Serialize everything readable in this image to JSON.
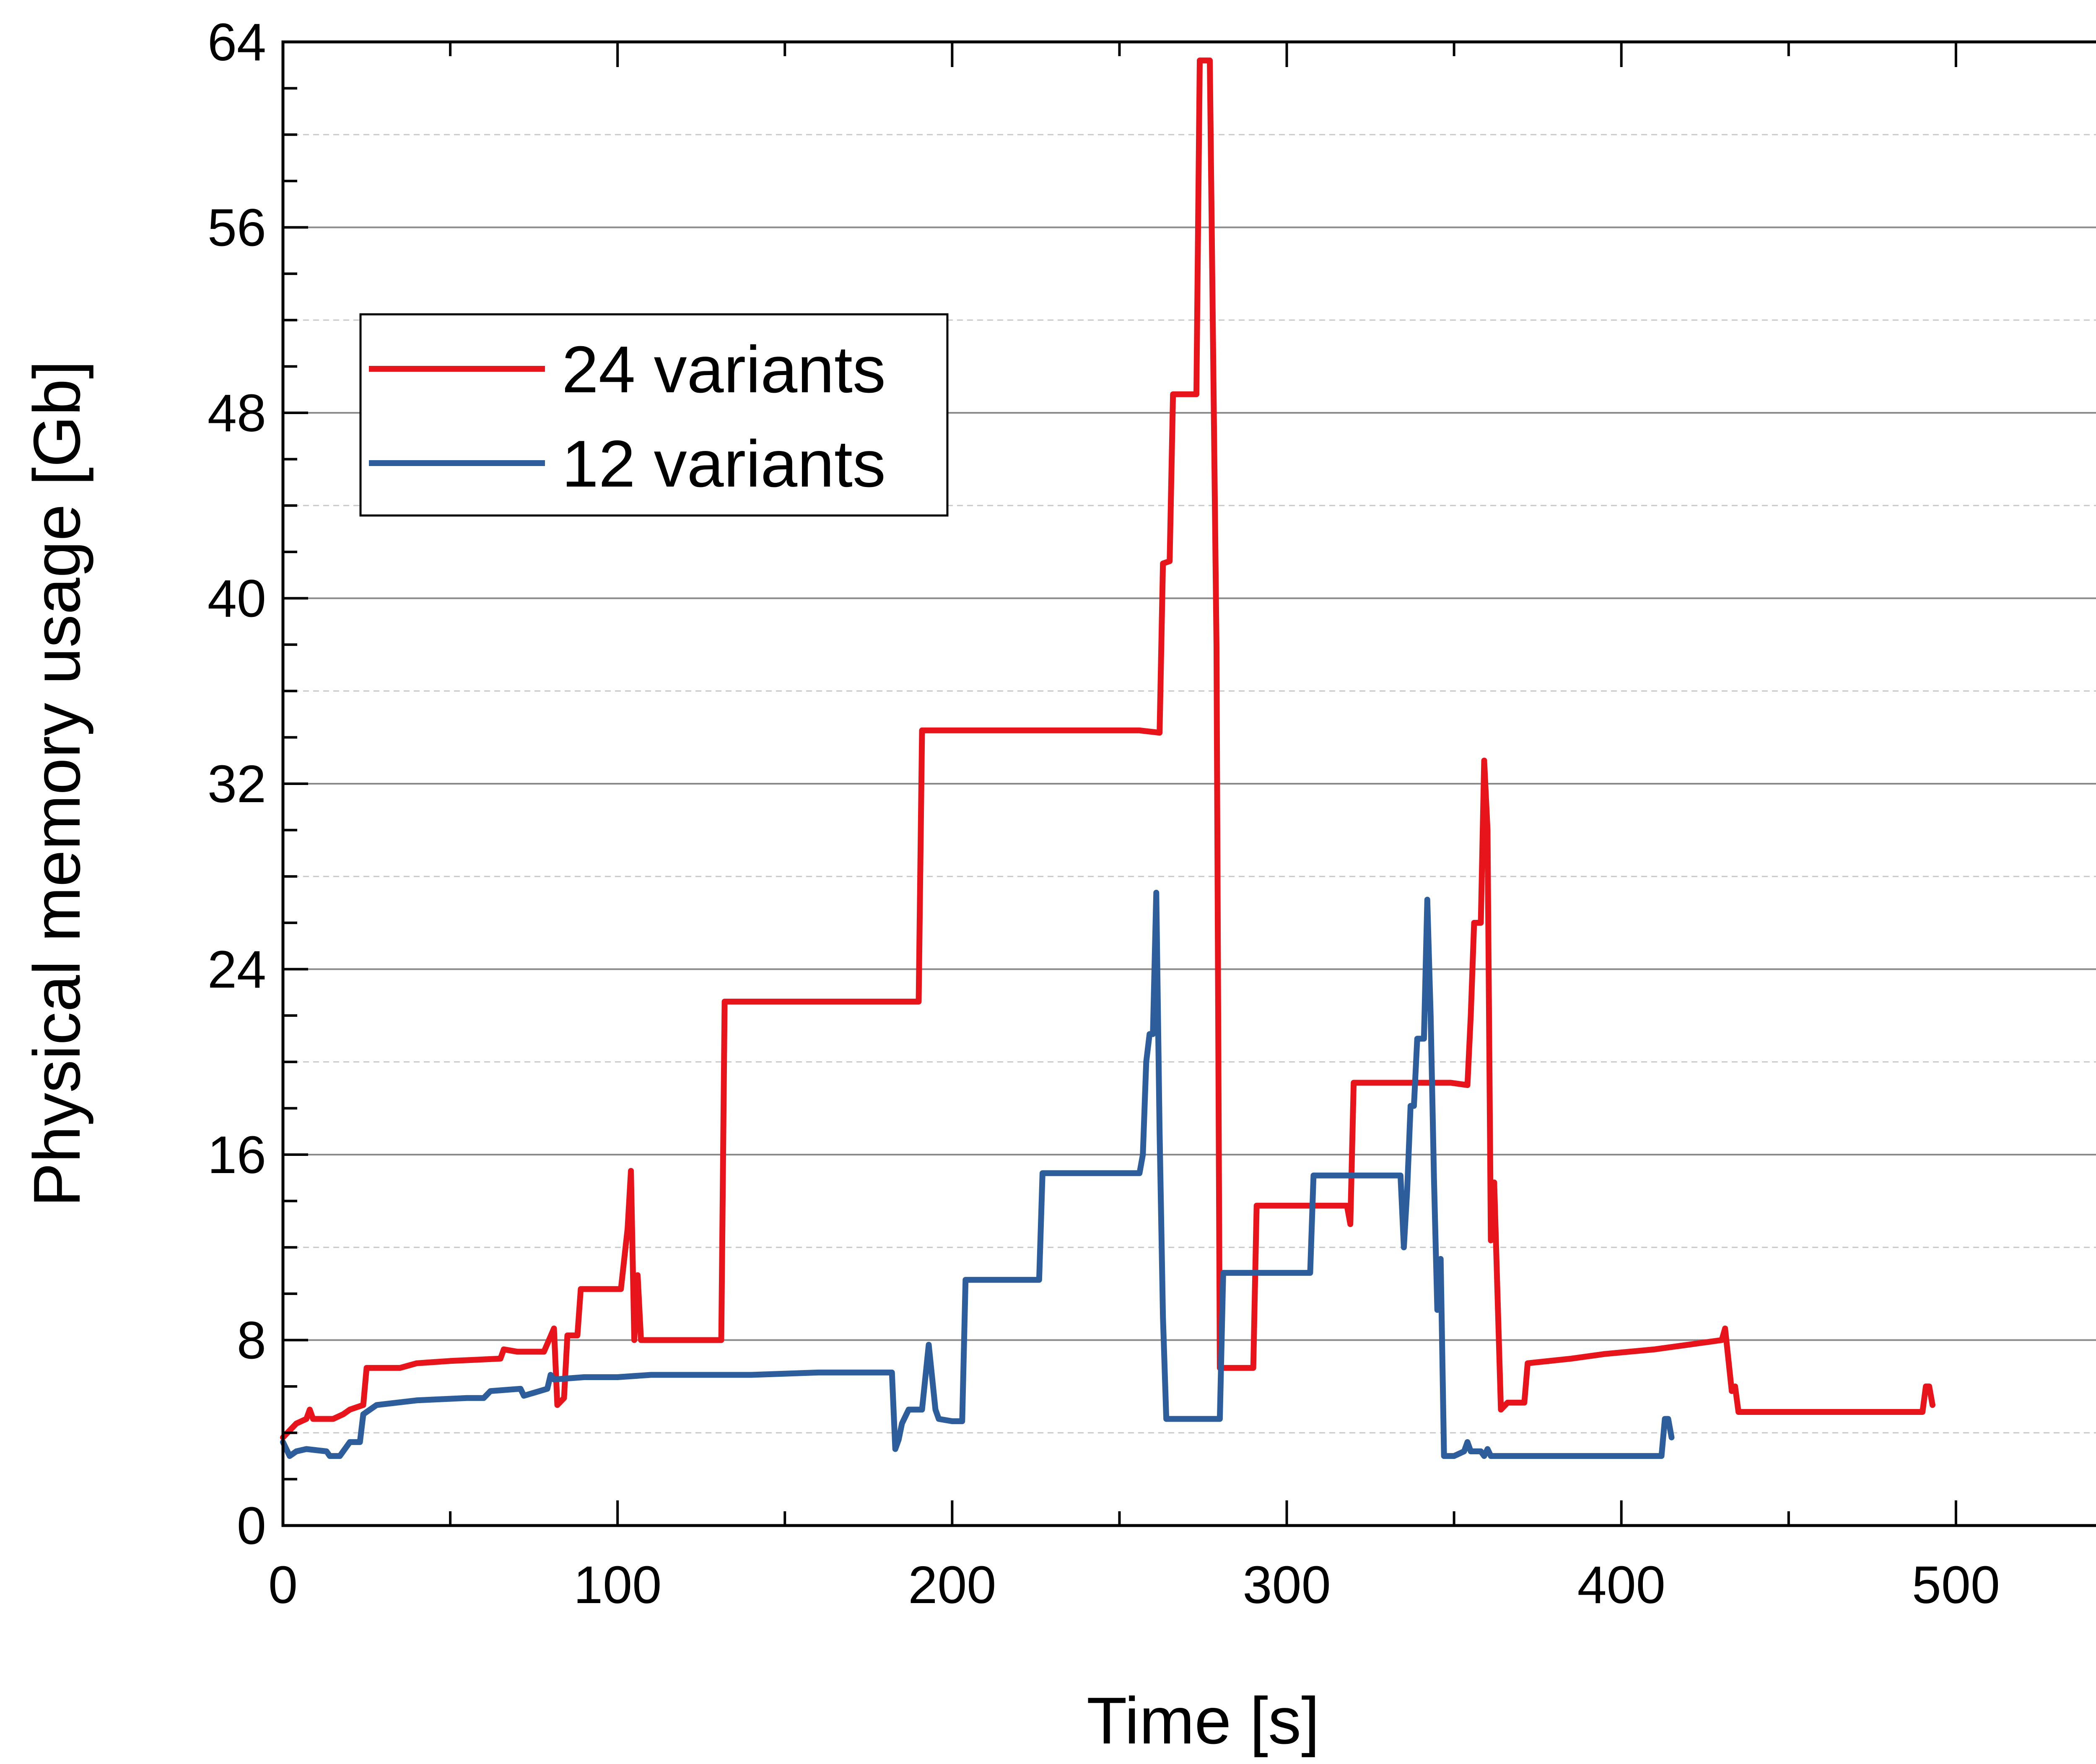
{
  "chart_data": {
    "type": "line",
    "title": "",
    "xlabel": "Time [s]",
    "ylabel": "Physical memory usage [Gb]",
    "xlim": [
      0,
      550
    ],
    "ylim": [
      0,
      64
    ],
    "xticks": [
      0,
      100,
      200,
      300,
      400,
      500
    ],
    "xtick_labels": [
      "0",
      "100",
      "200",
      "300",
      "400",
      "500"
    ],
    "yticks": [
      0,
      8,
      16,
      24,
      32,
      40,
      48,
      56,
      64
    ],
    "ytick_labels": [
      "0",
      "8",
      "16",
      "24",
      "32",
      "40",
      "48",
      "56",
      "64"
    ],
    "grid": "major solid, minor dashed horizontal",
    "legend_position": "upper-left",
    "series": [
      {
        "name": "24 variants",
        "color": "#e8141b",
        "points": [
          [
            0,
            3.8
          ],
          [
            4,
            4.4
          ],
          [
            7,
            4.6
          ],
          [
            8,
            5.0
          ],
          [
            9,
            4.6
          ],
          [
            15,
            4.6
          ],
          [
            18,
            4.8
          ],
          [
            20,
            5.0
          ],
          [
            24,
            5.2
          ],
          [
            25,
            6.8
          ],
          [
            35,
            6.8
          ],
          [
            40,
            7.0
          ],
          [
            50,
            7.1
          ],
          [
            65,
            7.2
          ],
          [
            66,
            7.6
          ],
          [
            70,
            7.5
          ],
          [
            78,
            7.5
          ],
          [
            81,
            8.5
          ],
          [
            82,
            5.2
          ],
          [
            84,
            5.5
          ],
          [
            85,
            8.2
          ],
          [
            88,
            8.2
          ],
          [
            89,
            10.2
          ],
          [
            101,
            10.2
          ],
          [
            103,
            12.8
          ],
          [
            104,
            15.3
          ],
          [
            105,
            8.0
          ],
          [
            106,
            10.8
          ],
          [
            107,
            8.0
          ],
          [
            131,
            8.0
          ],
          [
            132,
            22.6
          ],
          [
            190,
            22.6
          ],
          [
            191,
            34.3
          ],
          [
            256,
            34.3
          ],
          [
            262,
            34.2
          ],
          [
            263,
            41.5
          ],
          [
            265,
            41.6
          ],
          [
            266,
            48.8
          ],
          [
            273,
            48.8
          ],
          [
            274,
            63.2
          ],
          [
            277,
            63.2
          ],
          [
            279,
            38.0
          ],
          [
            280,
            6.8
          ],
          [
            290,
            6.8
          ],
          [
            291,
            13.8
          ],
          [
            318,
            13.8
          ],
          [
            319,
            13.0
          ],
          [
            320,
            19.1
          ],
          [
            349,
            19.1
          ],
          [
            354,
            19.0
          ],
          [
            355,
            22.0
          ],
          [
            356,
            26.0
          ],
          [
            358,
            26.0
          ],
          [
            359,
            33.0
          ],
          [
            360,
            30.0
          ],
          [
            361,
            12.3
          ],
          [
            362,
            14.8
          ],
          [
            364,
            5.0
          ],
          [
            366,
            5.3
          ],
          [
            371,
            5.3
          ],
          [
            372,
            7.0
          ],
          [
            385,
            7.2
          ],
          [
            395,
            7.4
          ],
          [
            410,
            7.6
          ],
          [
            420,
            7.8
          ],
          [
            430,
            8.0
          ],
          [
            431,
            8.5
          ],
          [
            433,
            5.8
          ],
          [
            434,
            6.0
          ],
          [
            435,
            4.9
          ],
          [
            486,
            4.9
          ],
          [
            490,
            4.9
          ],
          [
            491,
            6.0
          ],
          [
            492,
            6.0
          ],
          [
            493,
            5.2
          ]
        ]
      },
      {
        "name": "12 variants",
        "color": "#2d5d9a",
        "points": [
          [
            0,
            3.6
          ],
          [
            2,
            3.0
          ],
          [
            4,
            3.2
          ],
          [
            7,
            3.3
          ],
          [
            13,
            3.2
          ],
          [
            14,
            3.0
          ],
          [
            17,
            3.0
          ],
          [
            20,
            3.6
          ],
          [
            23,
            3.6
          ],
          [
            24,
            4.8
          ],
          [
            28,
            5.2
          ],
          [
            40,
            5.4
          ],
          [
            55,
            5.5
          ],
          [
            60,
            5.5
          ],
          [
            62,
            5.8
          ],
          [
            71,
            5.9
          ],
          [
            72,
            5.6
          ],
          [
            79,
            5.9
          ],
          [
            80,
            6.5
          ],
          [
            81,
            6.3
          ],
          [
            90,
            6.4
          ],
          [
            100,
            6.4
          ],
          [
            110,
            6.5
          ],
          [
            140,
            6.5
          ],
          [
            160,
            6.6
          ],
          [
            182,
            6.6
          ],
          [
            183,
            3.3
          ],
          [
            184,
            3.7
          ],
          [
            185,
            4.4
          ],
          [
            187,
            5.0
          ],
          [
            191,
            5.0
          ],
          [
            193,
            7.8
          ],
          [
            195,
            5.0
          ],
          [
            196,
            4.6
          ],
          [
            200,
            4.5
          ],
          [
            201,
            4.5
          ],
          [
            203,
            4.5
          ],
          [
            204,
            10.6
          ],
          [
            226,
            10.6
          ],
          [
            227,
            15.2
          ],
          [
            256,
            15.2
          ],
          [
            257,
            16.0
          ],
          [
            258,
            20.0
          ],
          [
            259,
            21.2
          ],
          [
            260,
            21.2
          ],
          [
            261,
            27.3
          ],
          [
            262,
            17.0
          ],
          [
            263,
            9.0
          ],
          [
            264,
            4.6
          ],
          [
            280,
            4.6
          ],
          [
            281,
            10.9
          ],
          [
            300,
            10.9
          ],
          [
            307,
            10.9
          ],
          [
            308,
            15.1
          ],
          [
            334,
            15.1
          ],
          [
            335,
            12.0
          ],
          [
            336,
            14.5
          ],
          [
            337,
            18.1
          ],
          [
            338,
            18.1
          ],
          [
            339,
            21.0
          ],
          [
            341,
            21.0
          ],
          [
            342,
            27.0
          ],
          [
            343,
            22.0
          ],
          [
            344,
            15.0
          ],
          [
            345,
            9.3
          ],
          [
            346,
            11.5
          ],
          [
            347,
            3.0
          ],
          [
            350,
            3.0
          ],
          [
            353,
            3.2
          ],
          [
            354,
            3.6
          ],
          [
            355,
            3.2
          ],
          [
            358,
            3.2
          ],
          [
            359,
            3.0
          ],
          [
            360,
            3.3
          ],
          [
            361,
            3.0
          ],
          [
            412,
            3.0
          ],
          [
            413,
            4.6
          ],
          [
            414,
            4.6
          ],
          [
            415,
            3.8
          ]
        ]
      }
    ]
  }
}
